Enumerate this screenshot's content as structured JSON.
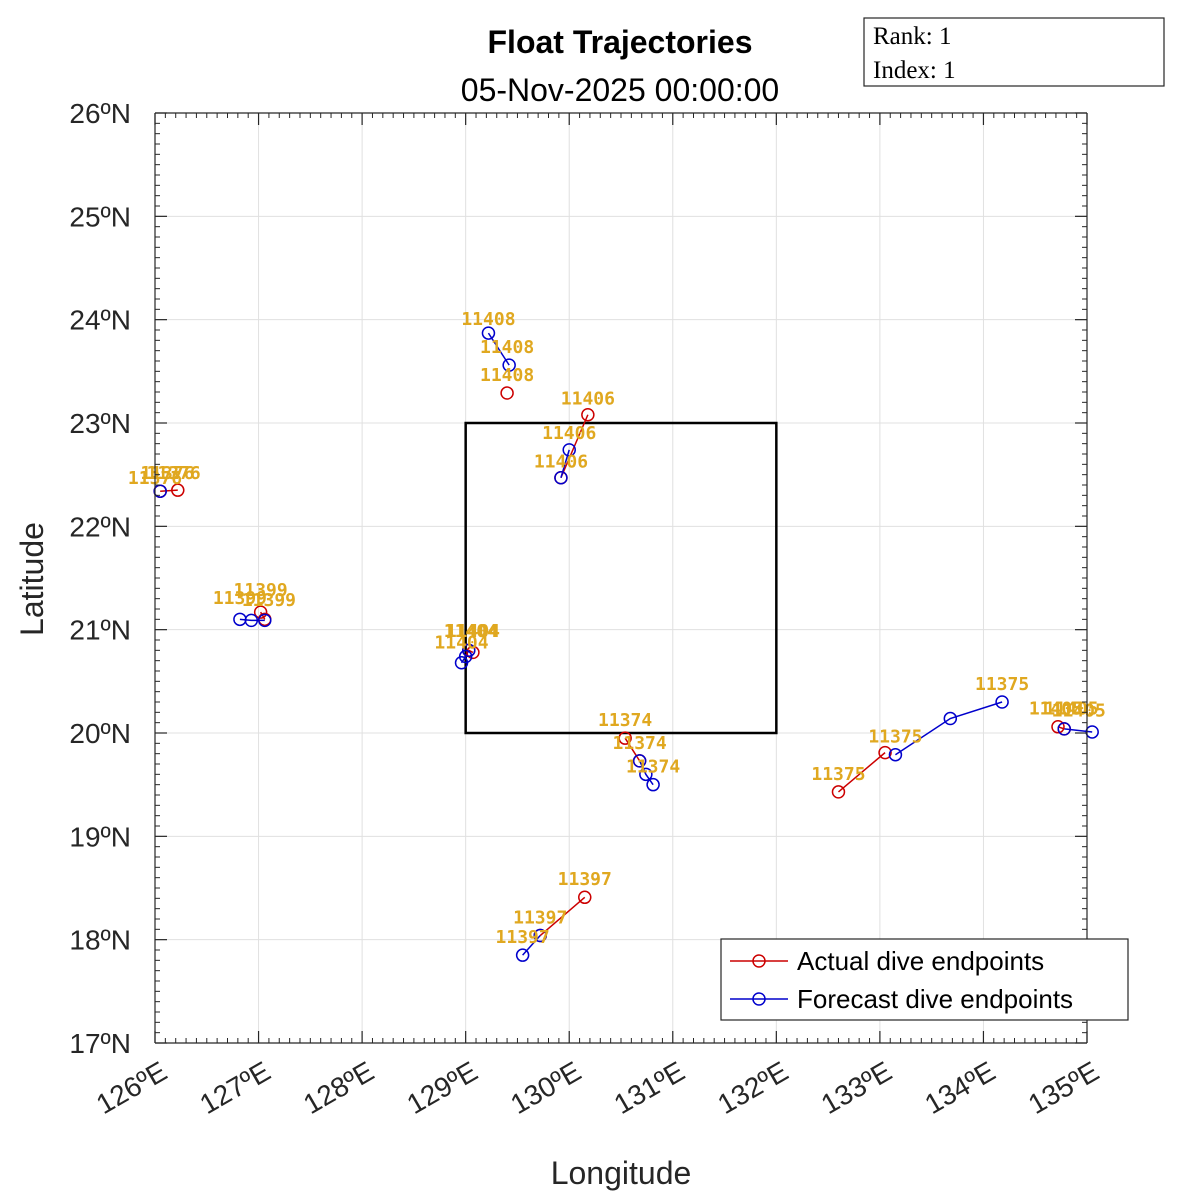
{
  "chart_data": {
    "type": "line",
    "title": "Float Trajectories",
    "subtitle": "05-Nov-2025 00:00:00",
    "xlabel": "Longitude",
    "ylabel": "Latitude",
    "xlim": [
      126,
      135
    ],
    "ylim": [
      17,
      26
    ],
    "xticks": [
      126,
      127,
      128,
      129,
      130,
      131,
      132,
      133,
      134,
      135
    ],
    "yticks": [
      17,
      18,
      19,
      20,
      21,
      22,
      23,
      24,
      25,
      26
    ],
    "xtick_labels": [
      "126ºE",
      "127ºE",
      "128ºE",
      "129ºE",
      "130ºE",
      "131ºE",
      "132ºE",
      "133ºE",
      "134ºE",
      "135ºE"
    ],
    "ytick_labels": [
      "17ºN",
      "18ºN",
      "19ºN",
      "20ºN",
      "21ºN",
      "22ºN",
      "23ºN",
      "24ºN",
      "25ºN",
      "26ºN"
    ],
    "grid": true,
    "legend_position": "bottom-right",
    "colors": {
      "actual": "#cc0000",
      "forecast": "#0000cc",
      "label": "#e0a820",
      "box": "#000000",
      "grid": "#e0e0e0"
    },
    "info_box": {
      "rank": "Rank:  1",
      "index": "Index:  1"
    },
    "box": {
      "lon": [
        129,
        132
      ],
      "lat": [
        20,
        23
      ]
    },
    "series": [
      {
        "name": "Actual dive endpoints",
        "color": "#cc0000"
      },
      {
        "name": "Forecast dive endpoints",
        "color": "#0000cc"
      }
    ],
    "floats": [
      {
        "id": "11408",
        "actual": [
          [
            129.4,
            23.29
          ]
        ],
        "forecast": [
          [
            129.22,
            23.87
          ],
          [
            129.42,
            23.56
          ]
        ],
        "labels": [
          [
            129.22,
            23.87
          ],
          [
            129.4,
            23.6
          ],
          [
            129.4,
            23.33
          ]
        ]
      },
      {
        "id": "11406",
        "actual": [
          [
            130.18,
            23.08
          ],
          [
            129.92,
            22.47
          ]
        ],
        "forecast": [
          [
            130.0,
            22.74
          ],
          [
            129.92,
            22.47
          ]
        ],
        "labels": [
          [
            130.18,
            23.1
          ],
          [
            130.0,
            22.77
          ],
          [
            129.92,
            22.49
          ]
        ]
      },
      {
        "id": "11376",
        "actual": [
          [
            126.22,
            22.35
          ],
          [
            126.05,
            22.34
          ]
        ],
        "forecast": [
          [
            126.05,
            22.34
          ]
        ],
        "labels": [
          [
            126.12,
            22.38
          ],
          [
            126.0,
            22.33
          ],
          [
            126.18,
            22.38
          ]
        ]
      },
      {
        "id": "11399",
        "actual": [
          [
            127.02,
            21.17
          ],
          [
            127.06,
            21.1
          ]
        ],
        "forecast": [
          [
            126.82,
            21.1
          ],
          [
            126.93,
            21.09
          ],
          [
            127.06,
            21.09
          ]
        ],
        "labels": [
          [
            127.02,
            21.25
          ],
          [
            126.82,
            21.17
          ],
          [
            127.1,
            21.15
          ]
        ]
      },
      {
        "id": "11404",
        "actual": [
          [
            129.07,
            20.78
          ],
          [
            129.03,
            20.8
          ]
        ],
        "forecast": [
          [
            128.96,
            20.68
          ],
          [
            129.0,
            20.74
          ],
          [
            129.03,
            20.8
          ]
        ],
        "labels": [
          [
            129.05,
            20.85
          ],
          [
            129.07,
            20.85
          ],
          [
            128.96,
            20.74
          ]
        ]
      },
      {
        "id": "11374",
        "actual": [
          [
            130.54,
            19.95
          ],
          [
            130.68,
            19.73
          ]
        ],
        "forecast": [
          [
            130.68,
            19.73
          ],
          [
            130.74,
            19.6
          ],
          [
            130.81,
            19.5
          ]
        ],
        "labels": [
          [
            130.54,
            19.99
          ],
          [
            130.68,
            19.77
          ],
          [
            130.81,
            19.54
          ]
        ]
      },
      {
        "id": "11375",
        "actual": [
          [
            132.6,
            19.43
          ],
          [
            133.05,
            19.81
          ]
        ],
        "forecast": [
          [
            133.15,
            19.79
          ],
          [
            133.68,
            20.14
          ],
          [
            134.18,
            20.3
          ]
        ],
        "labels": [
          [
            132.6,
            19.47
          ],
          [
            133.15,
            19.83
          ],
          [
            134.18,
            20.34
          ]
        ]
      },
      {
        "id": "11405",
        "actual": [
          [
            134.72,
            20.06
          ],
          [
            134.78,
            20.04
          ]
        ],
        "forecast": [
          [
            134.78,
            20.04
          ],
          [
            135.05,
            20.01
          ]
        ],
        "labels": [
          [
            134.7,
            20.1
          ],
          [
            134.85,
            20.1
          ],
          [
            134.92,
            20.08
          ]
        ]
      },
      {
        "id": "11397",
        "actual": [
          [
            130.15,
            18.41
          ],
          [
            129.72,
            18.04
          ]
        ],
        "forecast": [
          [
            129.72,
            18.04
          ],
          [
            129.55,
            17.85
          ]
        ],
        "labels": [
          [
            130.15,
            18.45
          ],
          [
            129.72,
            18.08
          ],
          [
            129.55,
            17.89
          ]
        ]
      }
    ]
  }
}
